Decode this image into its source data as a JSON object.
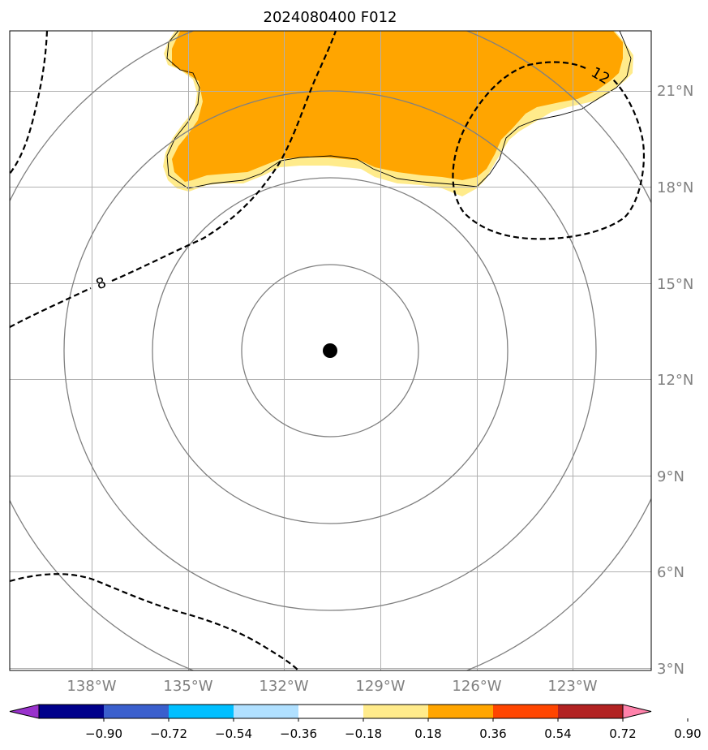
{
  "title": "2024080400 F012",
  "lon_ticks": [
    "138°W",
    "135°W",
    "132°W",
    "129°W",
    "126°W",
    "123°W"
  ],
  "lat_ticks": [
    "21°N",
    "18°N",
    "15°N",
    "12°N",
    "9°N",
    "6°N",
    "3°N"
  ],
  "contour_labels": [
    "8",
    "12"
  ],
  "colorbar": {
    "tick_labels": [
      "−0.90",
      "−0.72",
      "−0.54",
      "−0.36",
      "−0.18",
      "0.18",
      "0.36",
      "0.54",
      "0.72",
      "0.90"
    ],
    "colors": [
      "#9932cc",
      "#00008b",
      "#3a5fcd",
      "#00bfff",
      "#b0e0ff",
      "#ffffff",
      "#ffeb8b",
      "#ffa500",
      "#ff4500",
      "#b22222",
      "#ff82ab"
    ],
    "extend": "both"
  },
  "center_marker": {
    "lon": -130.5,
    "lat": 12.9
  },
  "colors": {
    "fill_high": "#ffa500",
    "fill_low": "#ffeb8b",
    "grid": "#b0b0b0",
    "rings": "#808080",
    "contour": "#000000"
  }
}
